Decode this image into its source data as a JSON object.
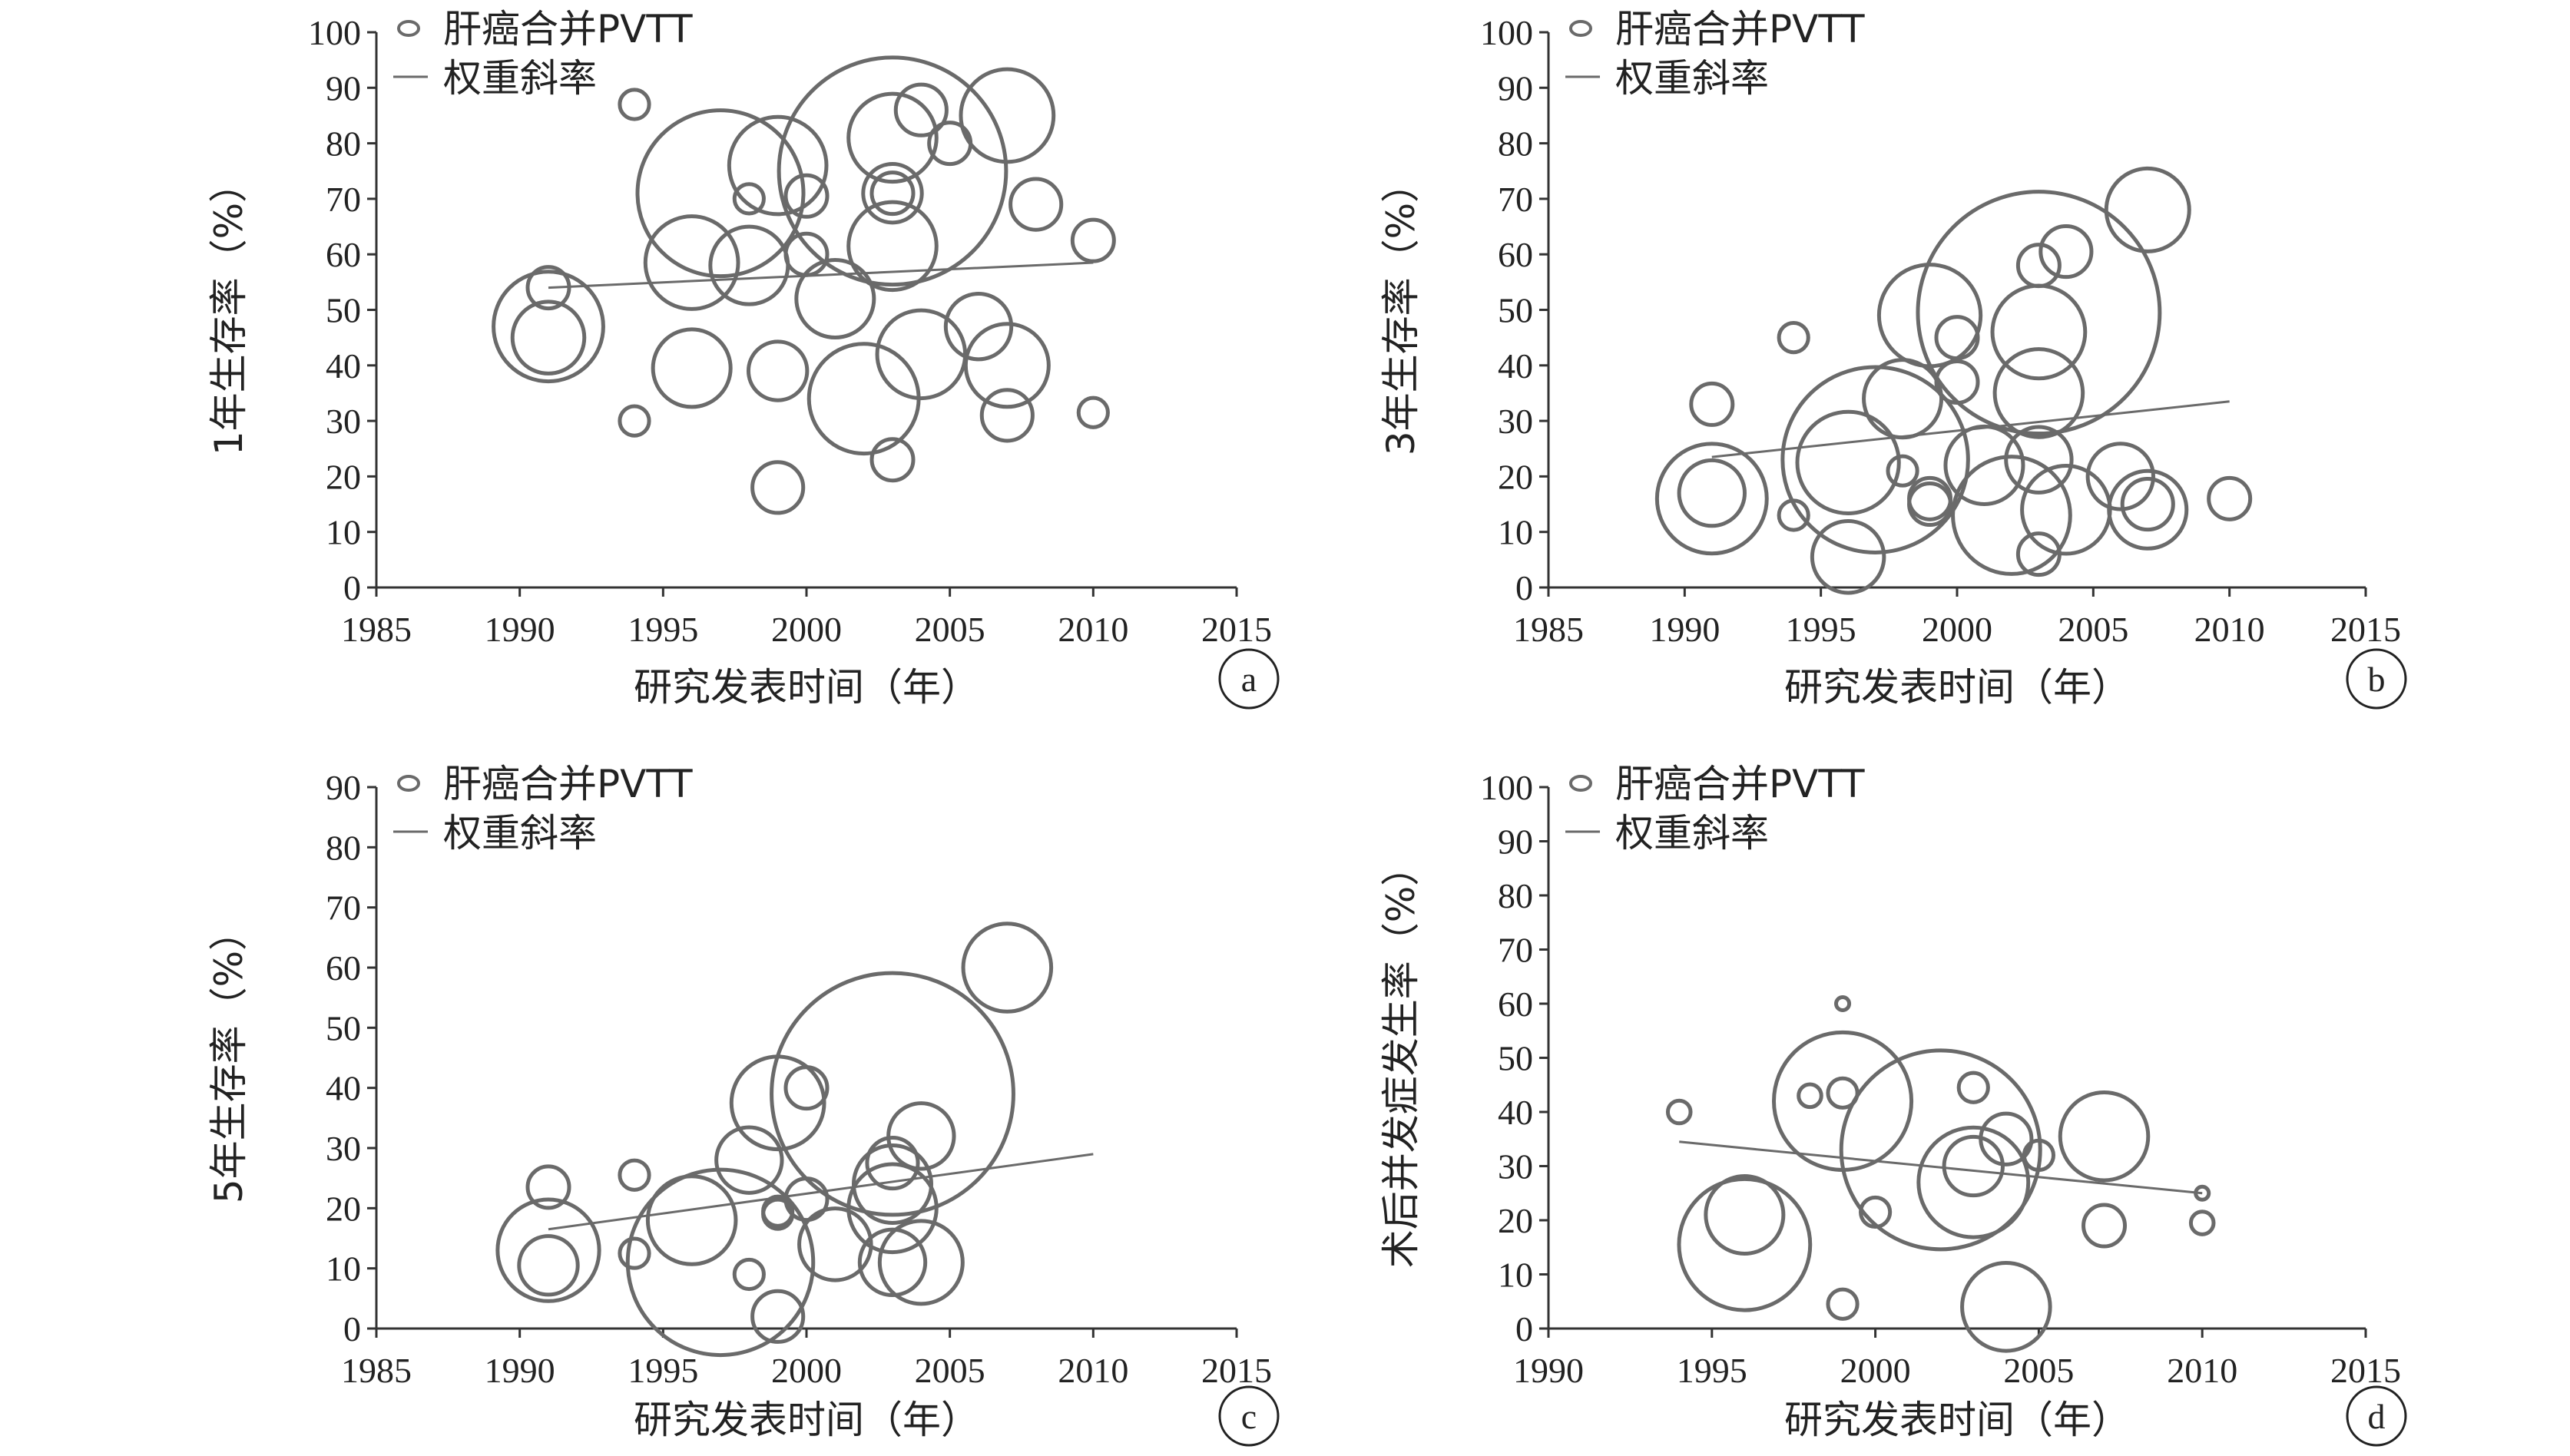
{
  "chart_data": [
    {
      "panel": "a",
      "type": "scatter",
      "ylabel": "1年生存率（%）",
      "xlabel": "研究发表时间（年）",
      "xlim": [
        1985,
        2015
      ],
      "xticks": [
        1985,
        1990,
        1995,
        2000,
        2005,
        2010,
        2015
      ],
      "ylim": [
        0,
        100
      ],
      "yticks": [
        0,
        10,
        20,
        30,
        40,
        50,
        60,
        70,
        80,
        90,
        100
      ],
      "legend": {
        "bubble": "肝癌合并PVTT",
        "line": "权重斜率",
        "position": "top-left"
      },
      "trend": {
        "x": [
          1991,
          2010
        ],
        "y": [
          54,
          58.5
        ]
      },
      "series": [
        {
          "name": "肝癌合并PVTT",
          "points": [
            {
              "x": 1991,
              "y": 47,
              "size": 7
            },
            {
              "x": 1991,
              "y": 45,
              "size": 3
            },
            {
              "x": 1991,
              "y": 54,
              "size": 1
            },
            {
              "x": 1994,
              "y": 87,
              "size": 0.5
            },
            {
              "x": 1994,
              "y": 30,
              "size": 0.5
            },
            {
              "x": 1996,
              "y": 58.5,
              "size": 5
            },
            {
              "x": 1996,
              "y": 39.5,
              "size": 3.5
            },
            {
              "x": 1997,
              "y": 71,
              "size": 16
            },
            {
              "x": 1998,
              "y": 58,
              "size": 3.5
            },
            {
              "x": 1998,
              "y": 70,
              "size": 0.5
            },
            {
              "x": 1999,
              "y": 76,
              "size": 5.5
            },
            {
              "x": 1999,
              "y": 39,
              "size": 2
            },
            {
              "x": 1999,
              "y": 18,
              "size": 1.5
            },
            {
              "x": 2000,
              "y": 70.5,
              "size": 1
            },
            {
              "x": 2000,
              "y": 60,
              "size": 1
            },
            {
              "x": 2001,
              "y": 52,
              "size": 3.5
            },
            {
              "x": 2002,
              "y": 34,
              "size": 7
            },
            {
              "x": 2003,
              "y": 75,
              "size": 30
            },
            {
              "x": 2003,
              "y": 81,
              "size": 4.5
            },
            {
              "x": 2003,
              "y": 71,
              "size": 2
            },
            {
              "x": 2003,
              "y": 71,
              "size": 1
            },
            {
              "x": 2003,
              "y": 61.5,
              "size": 4.5
            },
            {
              "x": 2003,
              "y": 23,
              "size": 1
            },
            {
              "x": 2004,
              "y": 86,
              "size": 1.5
            },
            {
              "x": 2004,
              "y": 42,
              "size": 4.5
            },
            {
              "x": 2005,
              "y": 80,
              "size": 1
            },
            {
              "x": 2006,
              "y": 47,
              "size": 2.5
            },
            {
              "x": 2007,
              "y": 85,
              "size": 5
            },
            {
              "x": 2007,
              "y": 40,
              "size": 4
            },
            {
              "x": 2007,
              "y": 31,
              "size": 1.5
            },
            {
              "x": 2008,
              "y": 69,
              "size": 1.5
            },
            {
              "x": 2010,
              "y": 62.5,
              "size": 1
            },
            {
              "x": 2010,
              "y": 31.5,
              "size": 0.5
            }
          ]
        }
      ]
    },
    {
      "panel": "b",
      "type": "scatter",
      "ylabel": "3年生存率（%）",
      "xlabel": "研究发表时间（年）",
      "xlim": [
        1985,
        2015
      ],
      "xticks": [
        1985,
        1990,
        1995,
        2000,
        2005,
        2010,
        2015
      ],
      "ylim": [
        0,
        100
      ],
      "yticks": [
        0,
        10,
        20,
        30,
        40,
        50,
        60,
        70,
        80,
        90,
        100
      ],
      "legend": {
        "bubble": "肝癌合并PVTT",
        "line": "权重斜率",
        "position": "top-left"
      },
      "trend": {
        "x": [
          1991,
          2010
        ],
        "y": [
          23.5,
          33.5
        ]
      },
      "series": [
        {
          "name": "肝癌合并PVTT",
          "points": [
            {
              "x": 1991,
              "y": 16,
              "size": 7
            },
            {
              "x": 1991,
              "y": 17,
              "size": 2.5
            },
            {
              "x": 1991,
              "y": 33,
              "size": 1
            },
            {
              "x": 1994,
              "y": 45,
              "size": 0.5
            },
            {
              "x": 1994,
              "y": 13,
              "size": 0.5
            },
            {
              "x": 1996,
              "y": 22.5,
              "size": 6
            },
            {
              "x": 1996,
              "y": 5.5,
              "size": 3
            },
            {
              "x": 1997,
              "y": 23,
              "size": 20
            },
            {
              "x": 1998,
              "y": 34,
              "size": 3.5
            },
            {
              "x": 1998,
              "y": 21,
              "size": 0.5
            },
            {
              "x": 1999,
              "y": 49,
              "size": 6
            },
            {
              "x": 1999,
              "y": 16,
              "size": 1
            },
            {
              "x": 1999,
              "y": 15,
              "size": 1
            },
            {
              "x": 2000,
              "y": 45,
              "size": 1
            },
            {
              "x": 2000,
              "y": 37,
              "size": 1
            },
            {
              "x": 2001,
              "y": 22,
              "size": 3.5
            },
            {
              "x": 2002,
              "y": 13,
              "size": 8
            },
            {
              "x": 2003,
              "y": 49.5,
              "size": 34
            },
            {
              "x": 2003,
              "y": 46,
              "size": 5
            },
            {
              "x": 2003,
              "y": 35,
              "size": 4.5
            },
            {
              "x": 2003,
              "y": 58,
              "size": 1
            },
            {
              "x": 2003,
              "y": 23,
              "size": 2.5
            },
            {
              "x": 2003,
              "y": 6,
              "size": 1
            },
            {
              "x": 2004,
              "y": 60.5,
              "size": 1.5
            },
            {
              "x": 2004,
              "y": 14,
              "size": 4.5
            },
            {
              "x": 2006,
              "y": 20,
              "size": 2.5
            },
            {
              "x": 2007,
              "y": 68,
              "size": 4
            },
            {
              "x": 2007,
              "y": 14,
              "size": 3.5
            },
            {
              "x": 2007,
              "y": 15,
              "size": 1.5
            },
            {
              "x": 2010,
              "y": 16,
              "size": 1
            }
          ]
        }
      ]
    },
    {
      "panel": "c",
      "type": "scatter",
      "ylabel": "5年生存率（%）",
      "xlabel": "研究发表时间（年）",
      "xlim": [
        1985,
        2015
      ],
      "xticks": [
        1985,
        1990,
        1995,
        2000,
        2005,
        2010,
        2015
      ],
      "ylim": [
        0,
        90
      ],
      "yticks": [
        0,
        10,
        20,
        30,
        40,
        50,
        60,
        70,
        80,
        90
      ],
      "legend": {
        "bubble": "肝癌合并PVTT",
        "line": "权重斜率",
        "position": "top-left"
      },
      "trend": {
        "x": [
          1991,
          2010
        ],
        "y": [
          16.5,
          29
        ]
      },
      "series": [
        {
          "name": "肝癌合并PVTT",
          "points": [
            {
              "x": 1991,
              "y": 13,
              "size": 6
            },
            {
              "x": 1991,
              "y": 10.5,
              "size": 2
            },
            {
              "x": 1991,
              "y": 23.5,
              "size": 1
            },
            {
              "x": 1994,
              "y": 25.5,
              "size": 0.5
            },
            {
              "x": 1994,
              "y": 12.5,
              "size": 0.5
            },
            {
              "x": 1996,
              "y": 18,
              "size": 4.5
            },
            {
              "x": 1997,
              "y": 11,
              "size": 20
            },
            {
              "x": 1998,
              "y": 28,
              "size": 2.5
            },
            {
              "x": 1998,
              "y": 9,
              "size": 0.5
            },
            {
              "x": 1999,
              "y": 37.5,
              "size": 5
            },
            {
              "x": 1999,
              "y": 19.5,
              "size": 0.5
            },
            {
              "x": 1999,
              "y": 19,
              "size": 0.5
            },
            {
              "x": 1999,
              "y": 2,
              "size": 1.5
            },
            {
              "x": 2000,
              "y": 40,
              "size": 1
            },
            {
              "x": 2000,
              "y": 21.5,
              "size": 1
            },
            {
              "x": 2001,
              "y": 14,
              "size": 3
            },
            {
              "x": 2003,
              "y": 39,
              "size": 34
            },
            {
              "x": 2003,
              "y": 24,
              "size": 3.5
            },
            {
              "x": 2003,
              "y": 27.5,
              "size": 1.5
            },
            {
              "x": 2003,
              "y": 20,
              "size": 4.5
            },
            {
              "x": 2003,
              "y": 11,
              "size": 2.5
            },
            {
              "x": 2004,
              "y": 32,
              "size": 2.5
            },
            {
              "x": 2004,
              "y": 11,
              "size": 4
            },
            {
              "x": 2007,
              "y": 60,
              "size": 4.5
            }
          ]
        }
      ]
    },
    {
      "panel": "d",
      "type": "scatter",
      "ylabel": "术后并发症发生率（%）",
      "xlabel": "研究发表时间（年）",
      "xlim": [
        1990,
        2015
      ],
      "xticks": [
        1990,
        1995,
        2000,
        2005,
        2010,
        2015
      ],
      "ylim": [
        0,
        100
      ],
      "yticks": [
        0,
        10,
        20,
        30,
        40,
        50,
        60,
        70,
        80,
        90,
        100
      ],
      "legend": {
        "bubble": "肝癌合并PVTT",
        "line": "权重斜率",
        "position": "top-left"
      },
      "trend": {
        "x": [
          1994,
          2010
        ],
        "y": [
          34.5,
          25
        ]
      },
      "series": [
        {
          "name": "肝癌合并PVTT",
          "points": [
            {
              "x": 1994,
              "y": 40,
              "size": 0.3
            },
            {
              "x": 1996,
              "y": 15.5,
              "size": 10
            },
            {
              "x": 1996,
              "y": 21,
              "size": 3.5
            },
            {
              "x": 1998,
              "y": 43,
              "size": 0.3
            },
            {
              "x": 1999,
              "y": 42,
              "size": 11
            },
            {
              "x": 1999,
              "y": 43.5,
              "size": 0.5
            },
            {
              "x": 1999,
              "y": 60,
              "size": 0.1
            },
            {
              "x": 1999,
              "y": 4.5,
              "size": 0.5
            },
            {
              "x": 2000,
              "y": 21.5,
              "size": 0.5
            },
            {
              "x": 2002,
              "y": 33,
              "size": 23
            },
            {
              "x": 2003,
              "y": 27,
              "size": 7
            },
            {
              "x": 2003,
              "y": 30,
              "size": 2
            },
            {
              "x": 2003,
              "y": 44.5,
              "size": 0.5
            },
            {
              "x": 2004,
              "y": 35,
              "size": 1.5
            },
            {
              "x": 2004,
              "y": 4,
              "size": 4.5
            },
            {
              "x": 2005,
              "y": 32,
              "size": 0.5
            },
            {
              "x": 2007,
              "y": 35.5,
              "size": 4.5
            },
            {
              "x": 2007,
              "y": 19,
              "size": 1
            },
            {
              "x": 2010,
              "y": 25,
              "size": 0.1
            },
            {
              "x": 2010,
              "y": 19.5,
              "size": 0.3
            }
          ]
        }
      ]
    }
  ],
  "colors": {
    "bubble": "#6a6a6a",
    "trend": "#6a6a6a",
    "axis": "#333333"
  }
}
